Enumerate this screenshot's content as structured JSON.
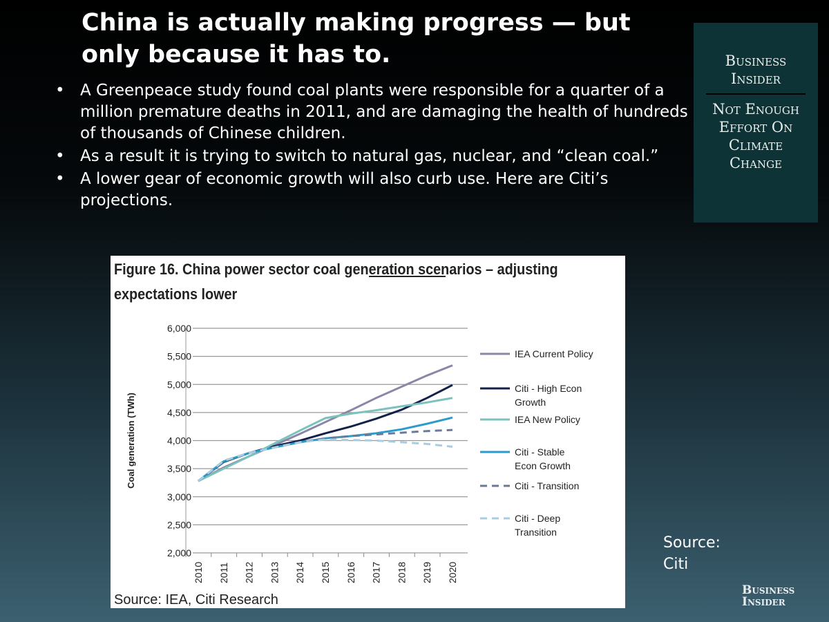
{
  "slide": {
    "title": "China is actually making progress — but only because it has to.",
    "bullets": [
      "A Greenpeace study found coal plants were responsible for a quarter of a million premature deaths in 2011, and are damaging the health of hundreds of thousands of Chinese children.",
      "As a result it is trying to switch to natural gas, nuclear, and “clean coal.”",
      "A lower gear of economic growth will also curb use. Here are Citi’s projections."
    ],
    "badge": {
      "top": "Business Insider",
      "bottom": "Not Enough Effort On Climate Change"
    },
    "source": "Source: Citi",
    "logo": "Business Insider"
  },
  "chart_data": {
    "type": "line",
    "title": "Figure 16. China power sector coal generation scenarios – adjusting expectations lower",
    "title_underlined_word": "generation",
    "ylabel": "Coal generation (TWh)",
    "xlabel": "",
    "source": "Source: IEA, Citi Research",
    "x": [
      "2010",
      "2011",
      "2012",
      "2013",
      "2014",
      "2015",
      "2016",
      "2017",
      "2018",
      "2019",
      "2020"
    ],
    "ylim": [
      2000,
      6000
    ],
    "yticks": [
      "2,000",
      "2,500",
      "3,000",
      "3,500",
      "4,000",
      "4,500",
      "5,000",
      "5,500",
      "6,000"
    ],
    "grid": true,
    "legend": "right",
    "series": [
      {
        "name": "IEA Current Policy",
        "color": "#8a86a8",
        "dash": "solid",
        "values": [
          3280,
          3520,
          3720,
          3920,
          4120,
          4330,
          4540,
          4760,
          4960,
          5160,
          5340
        ]
      },
      {
        "name": "Citi - High Econ Growth",
        "color": "#12204a",
        "dash": "solid",
        "values": [
          3280,
          3620,
          3780,
          3900,
          4000,
          4130,
          4250,
          4390,
          4550,
          4760,
          4990
        ]
      },
      {
        "name": "IEA New Policy",
        "color": "#7cc2bc",
        "dash": "solid",
        "values": [
          3280,
          3500,
          3720,
          3950,
          4180,
          4400,
          4480,
          4540,
          4610,
          4680,
          4760
        ]
      },
      {
        "name": "Citi - Stable Econ Growth",
        "color": "#2a9ccc",
        "dash": "solid",
        "values": [
          3280,
          3630,
          3780,
          3880,
          3970,
          4040,
          4080,
          4130,
          4200,
          4300,
          4410
        ]
      },
      {
        "name": "Citi - Transition",
        "color": "#6a7a96",
        "dash": "dash",
        "values": [
          3280,
          3640,
          3780,
          3880,
          3970,
          4040,
          4080,
          4110,
          4140,
          4170,
          4190
        ]
      },
      {
        "name": "Citi - Deep Transition",
        "color": "#a8cde0",
        "dash": "dash",
        "values": [
          3280,
          3640,
          3780,
          3880,
          3970,
          4020,
          4010,
          4000,
          3970,
          3940,
          3890
        ]
      }
    ]
  }
}
